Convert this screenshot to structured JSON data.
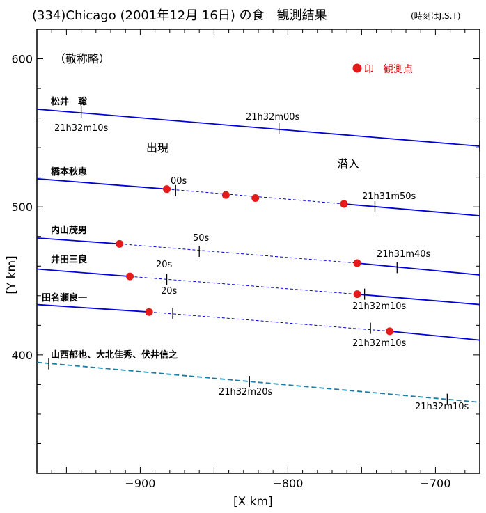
{
  "chart_data": {
    "type": "line",
    "title": "(334)Chicago (2001年12月 16日) の食　観測結果",
    "title_note": "(時刻はJ.S.T)",
    "xlabel": "[X km]",
    "ylabel": "[Y km]",
    "xlim": [
      -970,
      -670
    ],
    "ylim": [
      320,
      620
    ],
    "x_ticks": [
      -900,
      -800,
      -700
    ],
    "y_ticks": [
      400,
      500,
      600
    ],
    "x_tick_labels": [
      "−900",
      "−800",
      "−700"
    ],
    "y_tick_labels": [
      "400",
      "500",
      "600"
    ],
    "honorific_note": "（敬称略）",
    "legend": {
      "marker_label": "印　観測点",
      "marker_color": "#e51b1b"
    },
    "region_labels": {
      "appear": "出現",
      "disappear": "潜入"
    },
    "chord_color": "#0000dd",
    "miss_color": "#1a7fa6",
    "series": [
      {
        "name": "松井　聡",
        "line": [
          [
            -970,
            566
          ],
          [
            -670,
            541
          ]
        ],
        "segments": [],
        "ticks": [
          [
            -940,
            564
          ],
          [
            -806,
            553
          ],
          [
            -670,
            541
          ]
        ],
        "points": [],
        "labels": [
          "21h32m10s",
          "21h32m00s"
        ]
      },
      {
        "name": "橋本秋恵",
        "line": [
          [
            -970,
            519
          ],
          [
            -670,
            494
          ]
        ],
        "segments": [
          [
            -970,
            519,
            -882,
            512
          ],
          [
            -762,
            502,
            -670,
            494
          ]
        ],
        "ticks": [
          [
            -876,
            511
          ],
          [
            -741,
            500
          ]
        ],
        "points": [
          [
            -882,
            512
          ],
          [
            -842,
            508
          ],
          [
            -822,
            506
          ],
          [
            -762,
            502
          ]
        ],
        "labels": [
          "00s",
          "21h31m50s"
        ]
      },
      {
        "name": "内山茂男",
        "line": [
          [
            -970,
            479
          ],
          [
            -670,
            454
          ]
        ],
        "segments": [
          [
            -970,
            479,
            -914,
            475
          ],
          [
            -753,
            462,
            -670,
            454
          ]
        ],
        "ticks": [
          [
            -860,
            470
          ],
          [
            -726,
            459
          ]
        ],
        "points": [
          [
            -914,
            475
          ],
          [
            -753,
            462
          ]
        ],
        "labels": [
          "50s",
          "21h31m40s"
        ]
      },
      {
        "name": "井田三良",
        "line": [
          [
            -970,
            458
          ],
          [
            -670,
            434
          ]
        ],
        "segments": [
          [
            -970,
            458,
            -907,
            453
          ],
          [
            -753,
            441,
            -670,
            434
          ]
        ],
        "ticks": [
          [
            -882,
            451
          ],
          [
            -748,
            441
          ]
        ],
        "points": [
          [
            -907,
            453
          ],
          [
            -753,
            441
          ]
        ],
        "labels": [
          "20s",
          "20s",
          "21h32m10s"
        ]
      },
      {
        "name": "田名瀬良一",
        "line": [
          [
            -970,
            434
          ],
          [
            -670,
            410
          ]
        ],
        "segments": [
          [
            -970,
            434,
            -894,
            429
          ],
          [
            -731,
            416,
            -670,
            410
          ]
        ],
        "ticks": [
          [
            -878,
            428
          ],
          [
            -744,
            418
          ]
        ],
        "points": [
          [
            -894,
            429
          ],
          [
            -731,
            416
          ]
        ],
        "labels": [
          "21h32m10s"
        ]
      },
      {
        "name": "山西郁也、大北佳秀、伏井信之",
        "line": [
          [
            -970,
            395
          ],
          [
            -670,
            368
          ]
        ],
        "segments": [],
        "ticks": [
          [
            -962,
            394
          ],
          [
            -826,
            382
          ],
          [
            -692,
            370
          ]
        ],
        "points": [],
        "labels": [
          "21h32m20s",
          "21h32m10s"
        ]
      }
    ]
  }
}
